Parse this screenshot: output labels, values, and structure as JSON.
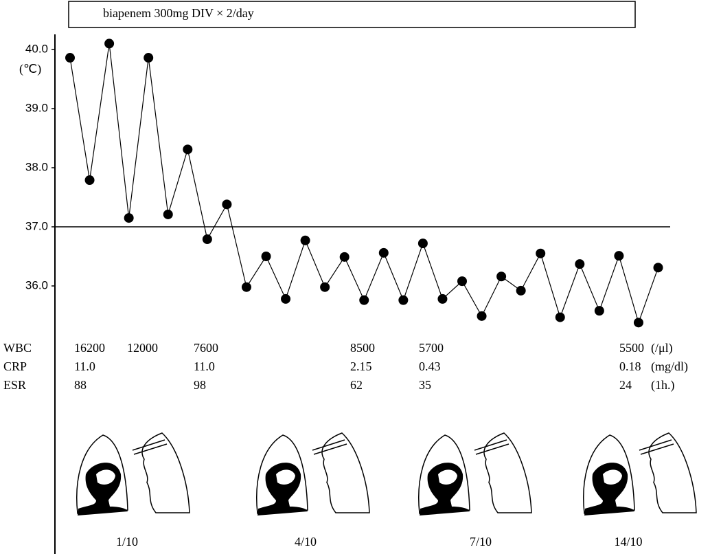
{
  "chart_data": {
    "type": "line",
    "title": "biapenem 300mg DIV × 2/day",
    "y_label": "(℃)",
    "ylim": [
      35.3,
      40.3
    ],
    "yticks": [
      {
        "value": 36,
        "label": "36.0"
      },
      {
        "value": 37,
        "label": "37.0"
      },
      {
        "value": 38,
        "label": "38.0"
      },
      {
        "value": 39,
        "label": "39.0"
      },
      {
        "value": 40,
        "label": "40.0"
      }
    ],
    "reference_line": {
      "value": 37,
      "label": "37.0"
    },
    "color": "#000000",
    "values": [
      39.86,
      37.79,
      40.1,
      37.15,
      39.86,
      37.21,
      38.31,
      36.79,
      37.38,
      35.98,
      36.5,
      35.78,
      36.77,
      35.98,
      36.49,
      35.76,
      36.56,
      35.76,
      36.72,
      35.78,
      36.08,
      35.49,
      36.16,
      35.92,
      36.55,
      35.47,
      36.37,
      35.58,
      36.51,
      35.38,
      36.31
    ],
    "lab_table": [
      {
        "name": "WBC",
        "unit": "(/μl)",
        "values": [
          "16200",
          "12000",
          "7600",
          "8500",
          "5700",
          "5500"
        ]
      },
      {
        "name": "CRP",
        "unit": "(mg/dl)",
        "values": [
          "11.0",
          null,
          "11.0",
          "2.15",
          "0.43",
          "0.18"
        ]
      },
      {
        "name": "ESR",
        "unit": "(1h.)",
        "values": [
          "88",
          null,
          "98",
          "62",
          "35",
          "24"
        ]
      }
    ],
    "image_dates": [
      "1/10",
      "4/10",
      "7/10",
      "14/10"
    ]
  }
}
